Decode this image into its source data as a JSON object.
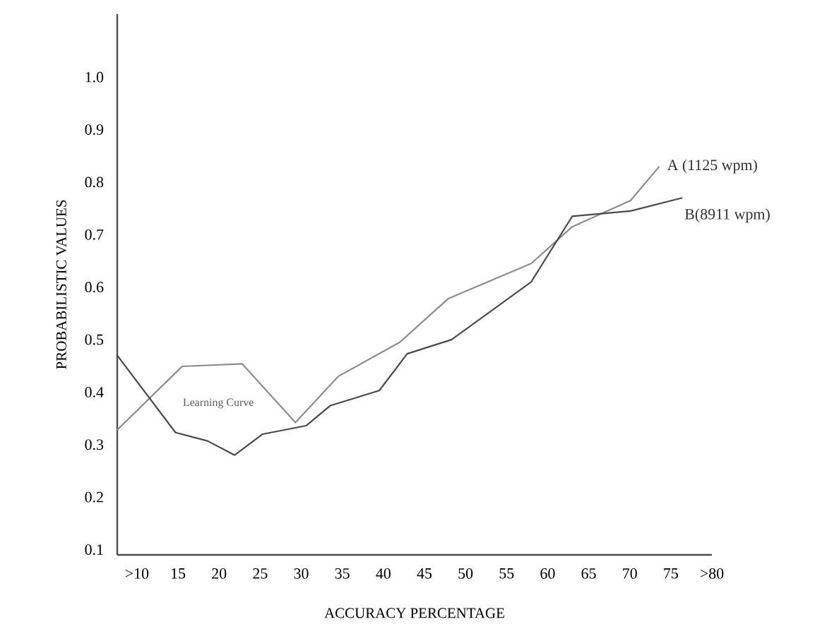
{
  "chart_data": {
    "type": "line",
    "xlabel": "ACCURACY PERCENTAGE",
    "ylabel": "PROBABILISTIC VALUES",
    "xlim": [
      7.6,
      80
    ],
    "ylim": [
      0.09,
      1.12
    ],
    "xticks": [
      {
        "value": 10,
        "label": ">10"
      },
      15,
      20,
      25,
      30,
      35,
      40,
      45,
      50,
      55,
      60,
      65,
      70,
      75,
      {
        "value": 80,
        "label": ">80"
      }
    ],
    "yticks": [
      0.1,
      0.2,
      0.3,
      0.4,
      0.5,
      0.6,
      0.7,
      0.8,
      0.9,
      {
        "value": 1.0,
        "label": "1.0"
      }
    ],
    "grid": false,
    "marker": "none",
    "line_style": "solid",
    "annotations": [
      "Learning Curve"
    ],
    "series": [
      {
        "name": "A (1125 wpm)",
        "color": "#8c8c8c",
        "x": [
          7.6,
          15.5,
          22.8,
          29.3,
          34.5,
          42.0,
          47.9,
          58.0,
          63.0,
          70.1,
          73.6
        ],
        "values": [
          0.328,
          0.449,
          0.454,
          0.342,
          0.43,
          0.495,
          0.578,
          0.645,
          0.715,
          0.765,
          0.83
        ]
      },
      {
        "name": "B(8911 wpm)",
        "color": "#4a4a4a",
        "x": [
          7.6,
          14.7,
          18.6,
          21.9,
          25.3,
          30.6,
          33.5,
          39.5,
          42.9,
          48.3,
          58.0,
          63.0,
          70.1,
          76.4
        ],
        "values": [
          0.47,
          0.323,
          0.307,
          0.28,
          0.32,
          0.336,
          0.374,
          0.403,
          0.473,
          0.5,
          0.61,
          0.735,
          0.745,
          0.77
        ]
      }
    ]
  }
}
